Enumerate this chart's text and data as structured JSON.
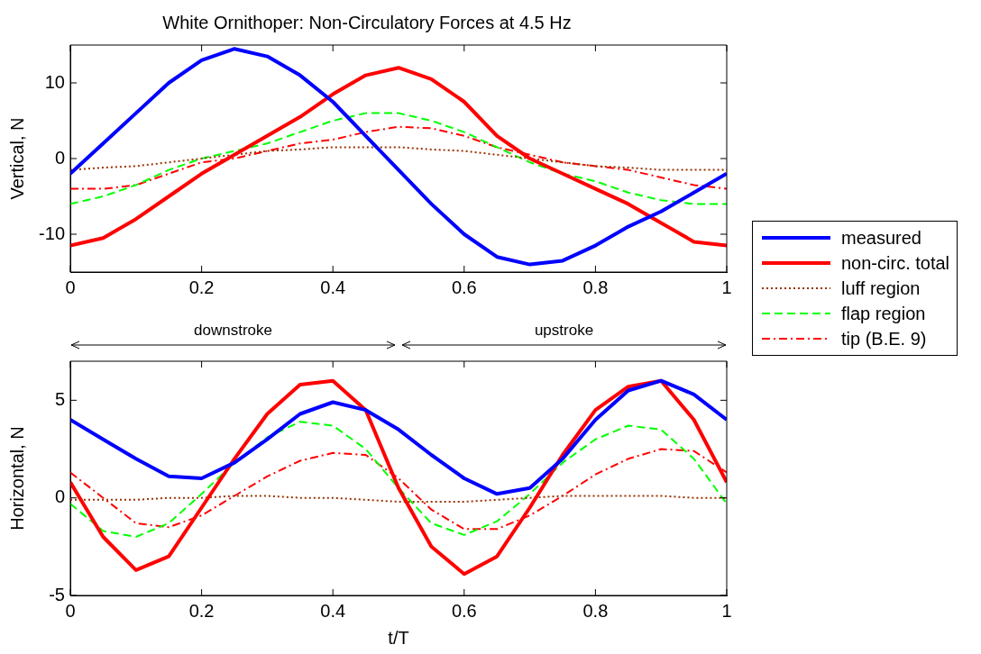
{
  "chart_data": [
    {
      "type": "line",
      "title": "White Ornithoper: Non-Circulatory Forces at 4.5 Hz",
      "ylabel": "Vertical, N",
      "x": [
        0,
        0.05,
        0.1,
        0.15,
        0.2,
        0.25,
        0.3,
        0.35,
        0.4,
        0.45,
        0.5,
        0.55,
        0.6,
        0.65,
        0.7,
        0.75,
        0.8,
        0.85,
        0.9,
        0.95,
        1
      ],
      "xlim": [
        0,
        1
      ],
      "xticks": [
        0,
        0.2,
        0.4,
        0.6,
        0.8,
        1
      ],
      "ylim": [
        -15,
        15
      ],
      "yticks": [
        -10,
        0,
        10
      ],
      "grid": false,
      "legend": "right",
      "marker": "none",
      "series": [
        {
          "name": "measured",
          "color": "#0000ff",
          "line_style": "solid",
          "values": [
            -2,
            2,
            6,
            10,
            13,
            14.5,
            13.5,
            11,
            7.5,
            3,
            -1.5,
            -6,
            -10,
            -13,
            -14,
            -13.5,
            -11.5,
            -9,
            -7,
            -4.5,
            -2
          ]
        },
        {
          "name": "non-circ. total",
          "color": "#ff0000",
          "line_style": "solid",
          "values": [
            -11.5,
            -10.5,
            -8,
            -5,
            -2,
            0.5,
            3,
            5.5,
            8.5,
            11,
            12,
            10.5,
            7.5,
            3,
            0,
            -2,
            -4,
            -6,
            -8.5,
            -11,
            -11.5
          ]
        },
        {
          "name": "luff region",
          "color": "#993300",
          "line_style": "dotted",
          "values": [
            -1.5,
            -1.2,
            -1,
            -0.5,
            0,
            0.5,
            1,
            1.2,
            1.5,
            1.5,
            1.5,
            1.2,
            1,
            0.5,
            0,
            -0.5,
            -1,
            -1.2,
            -1.5,
            -1.5,
            -1.5
          ]
        },
        {
          "name": "flap region",
          "color": "#00ff00",
          "line_style": "dashed",
          "values": [
            -6,
            -5,
            -3.5,
            -1.5,
            0,
            1,
            2,
            3.5,
            5,
            6,
            6,
            5,
            3.5,
            1.5,
            -0.5,
            -2,
            -3,
            -4.5,
            -5.5,
            -6,
            -6
          ]
        },
        {
          "name": "tip (B.E. 9)",
          "color": "#ff0000",
          "line_style": "dashdot",
          "values": [
            -4,
            -4,
            -3.5,
            -2,
            -0.5,
            0,
            1,
            2,
            2.5,
            3.5,
            4.2,
            4,
            3,
            1.5,
            0.5,
            -0.5,
            -1,
            -1.5,
            -2.5,
            -3.5,
            -4
          ]
        }
      ]
    },
    {
      "type": "line",
      "xlabel": "t/T",
      "ylabel": "Horizontal, N",
      "x": [
        0,
        0.05,
        0.1,
        0.15,
        0.2,
        0.25,
        0.3,
        0.35,
        0.4,
        0.45,
        0.5,
        0.55,
        0.6,
        0.65,
        0.7,
        0.75,
        0.8,
        0.85,
        0.9,
        0.95,
        1
      ],
      "xlim": [
        0,
        1
      ],
      "xticks": [
        0,
        0.2,
        0.4,
        0.6,
        0.8,
        1
      ],
      "ylim": [
        -5,
        7
      ],
      "yticks": [
        -5,
        0,
        5
      ],
      "grid": false,
      "marker": "none",
      "annotations": [
        "downstroke",
        "upstroke"
      ],
      "series": [
        {
          "color": "#0000ff",
          "line_style": "solid",
          "values": [
            4,
            3,
            2,
            1.1,
            1,
            1.8,
            3,
            4.3,
            4.9,
            4.5,
            3.5,
            2.2,
            1,
            0.2,
            0.5,
            2,
            4,
            5.5,
            6,
            5.3,
            4
          ]
        },
        {
          "color": "#ff0000",
          "line_style": "solid",
          "values": [
            0.8,
            -2,
            -3.7,
            -3,
            -0.5,
            2,
            4.3,
            5.8,
            6,
            4.5,
            0.5,
            -2.5,
            -3.9,
            -3,
            -0.5,
            2.2,
            4.5,
            5.7,
            6,
            4,
            0.8
          ]
        },
        {
          "color": "#993300",
          "line_style": "dotted",
          "values": [
            -0.1,
            -0.1,
            -0.1,
            0,
            0,
            0.1,
            0.1,
            0,
            0,
            -0.1,
            -0.2,
            -0.2,
            -0.2,
            -0.1,
            0,
            0.1,
            0.1,
            0.1,
            0.1,
            0,
            0
          ]
        },
        {
          "color": "#00ff00",
          "line_style": "dashed",
          "values": [
            -0.3,
            -1.7,
            -2,
            -1.3,
            0.2,
            1.8,
            3.1,
            3.9,
            3.7,
            2.5,
            0.5,
            -1.3,
            -1.9,
            -1.2,
            0.2,
            1.8,
            3,
            3.7,
            3.5,
            2,
            -0.3
          ]
        },
        {
          "color": "#ff0000",
          "line_style": "dashdot",
          "values": [
            1.3,
            0,
            -1.3,
            -1.5,
            -0.9,
            0.1,
            1.1,
            1.9,
            2.3,
            2.2,
            1,
            -0.6,
            -1.6,
            -1.6,
            -0.9,
            0.1,
            1.2,
            2,
            2.5,
            2.4,
            1.3
          ]
        }
      ]
    }
  ]
}
